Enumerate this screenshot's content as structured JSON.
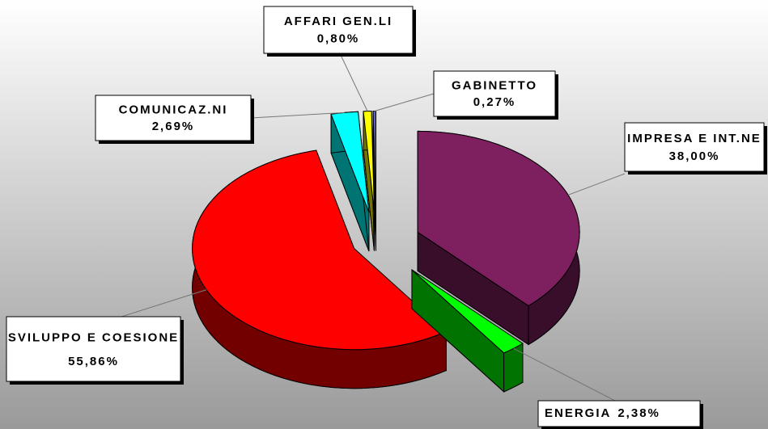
{
  "chart_data": {
    "type": "pie3d",
    "categories": [
      "IMPRESA E INT.NE",
      "ENERGIA",
      "SVILUPPO E COESIONE",
      "COMUNICAZ.NI",
      "AFFARI GEN.LI",
      "GABINETTO"
    ],
    "values": [
      38.0,
      2.38,
      55.86,
      2.69,
      0.8,
      0.27
    ],
    "value_labels": [
      "38,00%",
      "2,38%",
      "55,86%",
      "2,69%",
      "0,80%",
      "0,27%"
    ],
    "colors": [
      "#7e1f60",
      "#00ff00",
      "#ff0000",
      "#00ffff",
      "#ffff00",
      "#6060c0"
    ]
  }
}
